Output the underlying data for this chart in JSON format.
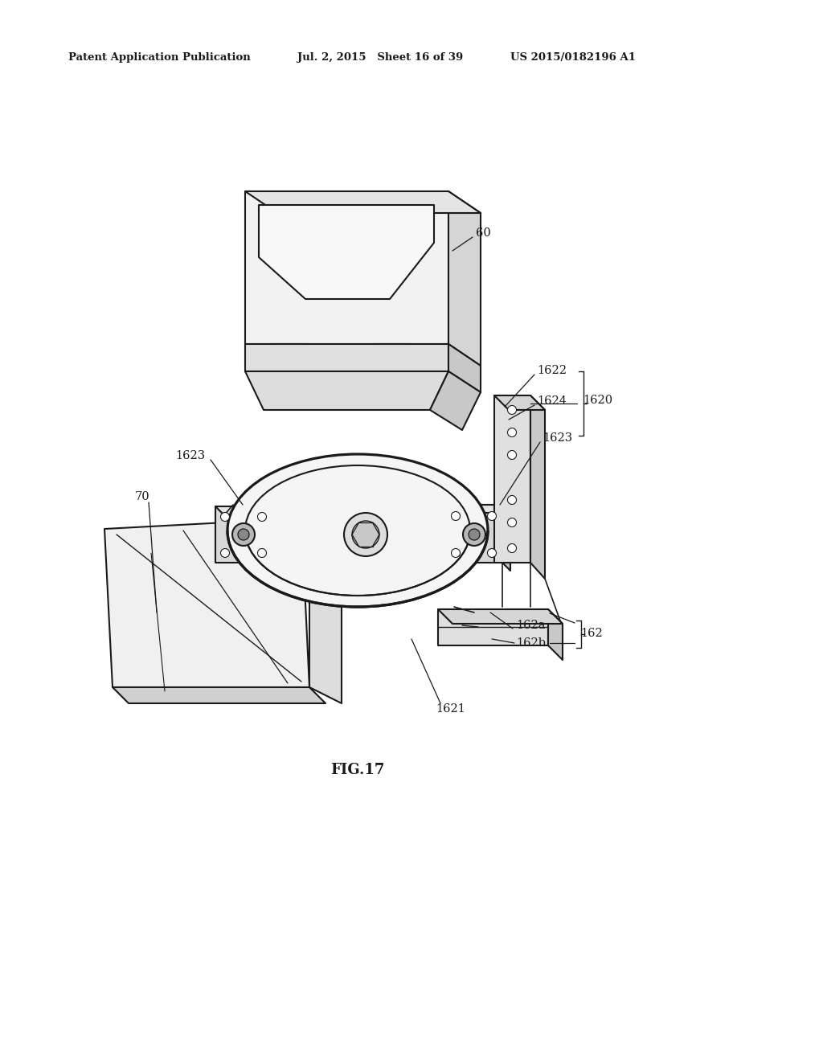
{
  "bg_color": "#ffffff",
  "line_color": "#1a1a1a",
  "header_left": "Patent Application Publication",
  "header_mid": "Jul. 2, 2015   Sheet 16 of 39",
  "header_right": "US 2015/0182196 A1",
  "fig_label": "FIG.17",
  "fig_width": 10.24,
  "fig_height": 13.2,
  "dpi": 100
}
